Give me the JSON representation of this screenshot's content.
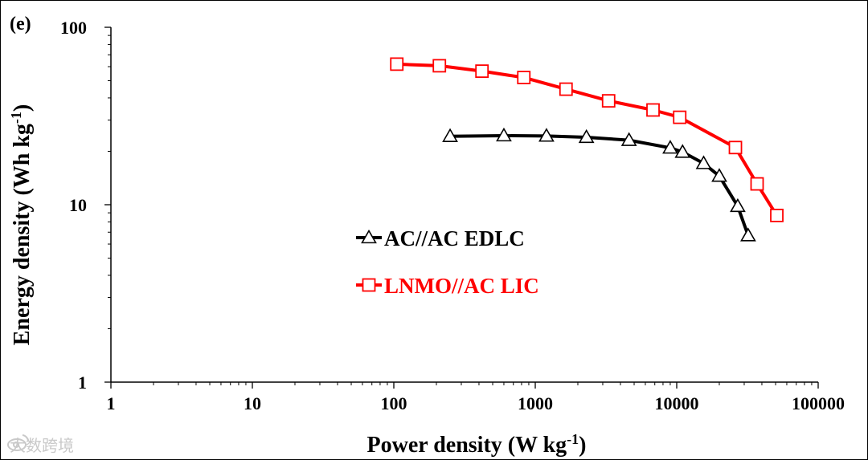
{
  "chart_data": {
    "type": "scatter",
    "panel_label": "(e)",
    "xlabel": "Power density (W kg",
    "xlabel_sup": "-1",
    "xlabel_end": ")",
    "ylabel": "Energy density (Wh kg",
    "ylabel_sup": "-1",
    "ylabel_end": ")",
    "xscale": "log",
    "yscale": "log",
    "xlim": [
      1,
      100000
    ],
    "ylim": [
      1,
      100
    ],
    "x_ticks": [
      1,
      10,
      100,
      1000,
      10000,
      100000
    ],
    "x_tick_labels": [
      "1",
      "10",
      "100",
      "1000",
      "10000",
      "100000"
    ],
    "y_ticks": [
      1,
      10,
      100
    ],
    "y_tick_labels": [
      "1",
      "10",
      "100"
    ],
    "legend_position": "center-left",
    "series": [
      {
        "name": "AC//AC EDLC",
        "color": "#000000",
        "marker": "triangle",
        "x": [
          250,
          600,
          1200,
          2300,
          4600,
          9000,
          11000,
          15500,
          20000,
          27000,
          32000
        ],
        "y": [
          24.3,
          24.5,
          24.4,
          24.0,
          23.1,
          20.9,
          19.8,
          17.1,
          14.5,
          9.8,
          6.7
        ]
      },
      {
        "name": "LNMO//AC LIC",
        "color": "#ff0000",
        "marker": "square",
        "x": [
          105,
          210,
          420,
          830,
          1650,
          3300,
          6800,
          10500,
          26000,
          37000,
          51000
        ],
        "y": [
          62,
          60.7,
          56.6,
          52.1,
          44.8,
          38.5,
          34.2,
          31.1,
          21.0,
          13.1,
          8.7
        ]
      }
    ]
  },
  "watermark": {
    "text": "大数跨境",
    "icon": "weibo-icon"
  }
}
